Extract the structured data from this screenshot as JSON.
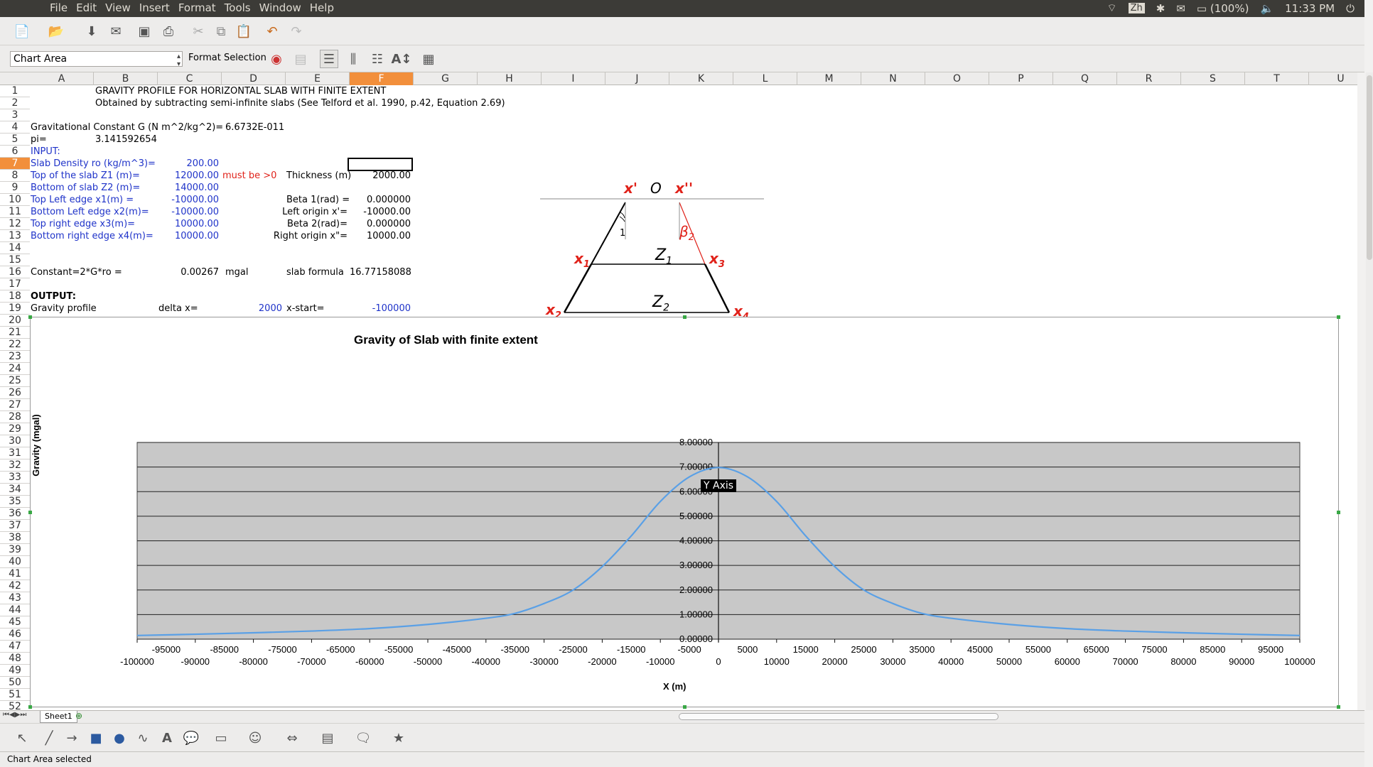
{
  "menubar": {
    "items": [
      "File",
      "Edit",
      "View",
      "Insert",
      "Format",
      "Tools",
      "Window",
      "Help"
    ],
    "tray": {
      "battery": "(100%)",
      "clock": "11:33 PM",
      "lang": "Zh"
    }
  },
  "toolbar": {
    "name_box": "Chart Area",
    "format_selection": "Format Selection"
  },
  "columns": [
    "A",
    "B",
    "C",
    "D",
    "E",
    "F",
    "G",
    "H",
    "I",
    "J",
    "K",
    "L",
    "M",
    "N",
    "O",
    "P",
    "Q",
    "R",
    "S",
    "T",
    "U"
  ],
  "selected_column": "F",
  "selected_row": "7",
  "rows": [
    "1",
    "2",
    "3",
    "4",
    "5",
    "6",
    "7",
    "8",
    "9",
    "10",
    "11",
    "12",
    "13",
    "14",
    "15",
    "16",
    "17",
    "18",
    "19",
    "20",
    "21",
    "22",
    "23",
    "24",
    "25",
    "26",
    "27",
    "28",
    "29",
    "30",
    "31",
    "32",
    "33",
    "34",
    "35",
    "36",
    "37",
    "38",
    "39",
    "40",
    "41",
    "42",
    "43",
    "44",
    "45",
    "46",
    "47",
    "48",
    "49",
    "50",
    "51",
    "52"
  ],
  "cells": {
    "b1": "GRAVITY PROFILE FOR HORIZONTAL SLAB WITH FINITE EXTENT",
    "b2": "Obtained by subtracting semi-infinite slabs (See Telford et al. 1990, p.42, Equation 2.69)",
    "a4": "Gravitational Constant G (N m^2/kg^2)=",
    "d4": "6.6732E-011",
    "a5": "pi=",
    "b5": "3.141592654",
    "a6": "INPUT:",
    "a7": "Slab Density ro (kg/m^3)=",
    "c7": "200.00",
    "a8": "Top of the slab Z1 (m)=",
    "c8": "12000.00",
    "d8": "must be >0",
    "e8": "Thickness (m)",
    "f8": "2000.00",
    "a9": "Bottom of slab Z2 (m)=",
    "c9": "14000.00",
    "a10": "Top Left edge x1(m) =",
    "c10": "-10000.00",
    "e10": "Beta 1(rad) =",
    "f10": "0.000000",
    "a11": "Bottom Left edge x2(m)=",
    "c11": "-10000.00",
    "e11": "Left origin x'=",
    "f11": "-10000.00",
    "a12": "Top right edge x3(m)=",
    "c12": "10000.00",
    "e12": "Beta 2(rad)=",
    "f12": "0.000000",
    "a13": "Bottom right edge x4(m)=",
    "c13": "10000.00",
    "e13": "Right origin x\"=",
    "f13": "10000.00",
    "a16": "Constant=2*G*ro =",
    "c16": "0.00267",
    "d16": "mgal",
    "e16": "slab formula",
    "f16": "16.77158088",
    "a18": "OUTPUT:",
    "a19": "Gravity profile",
    "c19": "delta x=",
    "d19": "2000",
    "e19": "x-start=",
    "f19": "-100000"
  },
  "diagram": {
    "x_prime": "x'",
    "origin": "O",
    "x_dprime": "x''",
    "x1": "x",
    "x1_sub": "1",
    "x2": "x",
    "x2_sub": "2",
    "x3": "x",
    "x3_sub": "3",
    "x4": "x",
    "x4_sub": "4",
    "z1": "Z",
    "z1_sub": "1",
    "z2": "Z",
    "z2_sub": "2",
    "beta1": "1",
    "beta2": "β",
    "beta2_sub": "2"
  },
  "chart_data": {
    "type": "line",
    "title": "Gravity of Slab with finite extent",
    "xlabel": "X (m)",
    "ylabel": "Gravity (mgal)",
    "xlim": [
      -100000,
      100000
    ],
    "ylim": [
      0,
      8
    ],
    "grid": true,
    "y_ticks": [
      "0.00000",
      "1.00000",
      "2.00000",
      "3.00000",
      "4.00000",
      "5.00000",
      "6.00000",
      "7.00000",
      "8.00000"
    ],
    "x_ticks_upper": [
      "-95000",
      "-85000",
      "-75000",
      "-65000",
      "-55000",
      "-45000",
      "-35000",
      "-25000",
      "-15000",
      "-5000",
      "5000",
      "15000",
      "25000",
      "35000",
      "45000",
      "55000",
      "65000",
      "75000",
      "85000",
      "95000"
    ],
    "x_ticks_lower": [
      "-100000",
      "-90000",
      "-80000",
      "-70000",
      "-60000",
      "-50000",
      "-40000",
      "-30000",
      "-20000",
      "-10000",
      "0",
      "10000",
      "20000",
      "30000",
      "40000",
      "50000",
      "60000",
      "70000",
      "80000",
      "90000",
      "100000"
    ],
    "series": [
      {
        "color": "#5aa0e6",
        "x": [
          -100000,
          -90000,
          -80000,
          -70000,
          -60000,
          -50000,
          -40000,
          -35000,
          -30000,
          -25000,
          -20000,
          -15000,
          -10000,
          -5000,
          0,
          5000,
          10000,
          15000,
          20000,
          25000,
          30000,
          35000,
          40000,
          50000,
          60000,
          70000,
          80000,
          90000,
          100000
        ],
        "y": [
          0.15,
          0.2,
          0.26,
          0.33,
          0.43,
          0.6,
          0.85,
          1.05,
          1.45,
          2.0,
          2.95,
          4.2,
          5.6,
          6.6,
          6.98,
          6.6,
          5.6,
          4.2,
          2.95,
          2.0,
          1.45,
          1.05,
          0.85,
          0.6,
          0.43,
          0.33,
          0.26,
          0.2,
          0.15
        ]
      }
    ]
  },
  "tooltip": "Y Axis",
  "sheet_tab": "Sheet1",
  "status": "Chart Area selected"
}
